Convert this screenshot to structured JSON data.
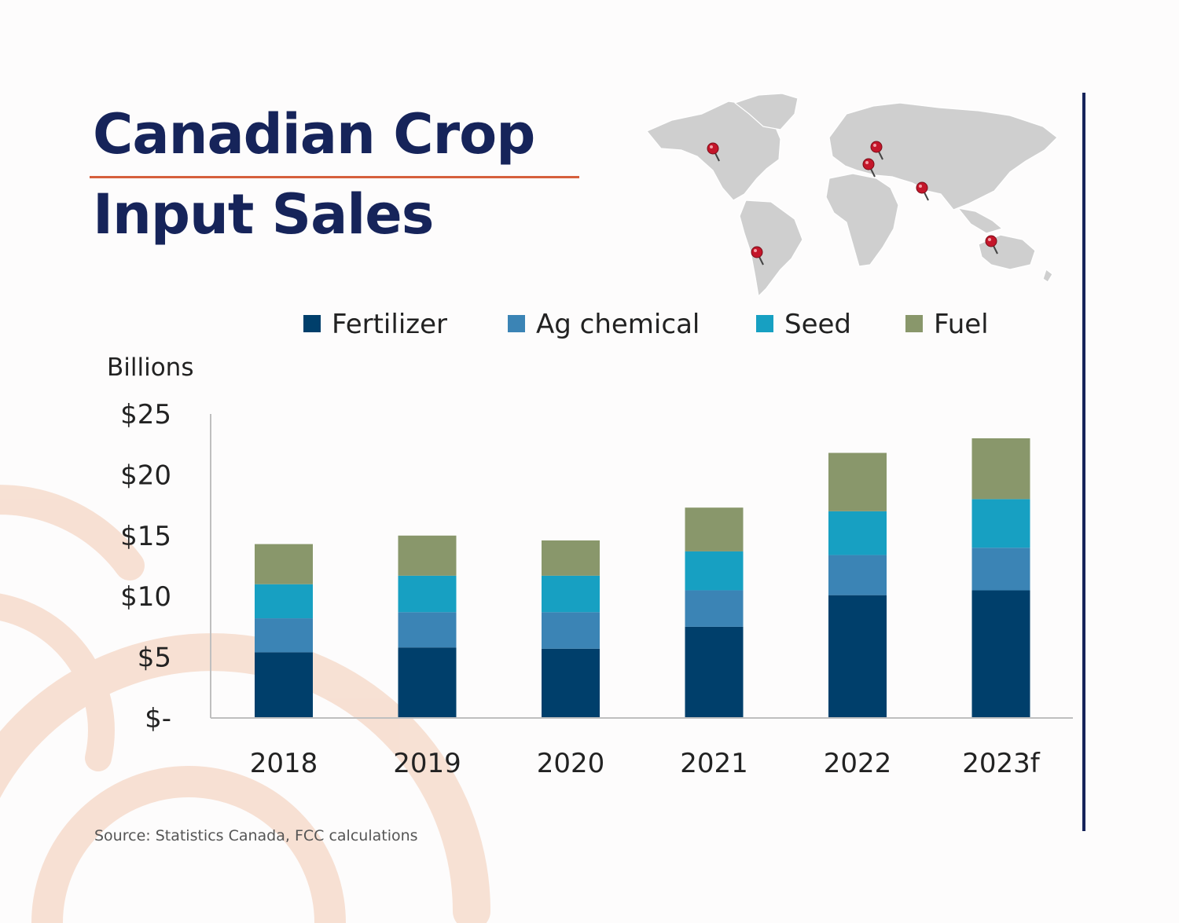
{
  "title": {
    "line1": "Canadian Crop",
    "line2": "Input Sales"
  },
  "source": "Source: Statistics Canada, FCC calculations",
  "colors": {
    "title": "#16245a",
    "accent": "#d65f3c",
    "Fertilizer": "#003f6b",
    "Ag chemical": "#3b84b5",
    "Seed": "#17a0c2",
    "Fuel": "#89976b"
  },
  "map_icon": "pushpin-icon",
  "chart_data": {
    "type": "bar",
    "stacked": true,
    "categories": [
      "2018",
      "2019",
      "2020",
      "2021",
      "2022",
      "2023f"
    ],
    "series": [
      {
        "name": "Fertilizer",
        "values": [
          5.4,
          5.8,
          5.7,
          7.5,
          10.1,
          10.5
        ]
      },
      {
        "name": "Ag chemical",
        "values": [
          2.8,
          2.9,
          3.0,
          3.0,
          3.3,
          3.5
        ]
      },
      {
        "name": "Seed",
        "values": [
          2.8,
          3.0,
          3.0,
          3.2,
          3.6,
          4.0
        ]
      },
      {
        "name": "Fuel",
        "values": [
          3.3,
          3.3,
          2.9,
          3.6,
          4.8,
          5.0
        ]
      }
    ],
    "ylabel": "Billions",
    "yticks": [
      "$-",
      "$5",
      "$10",
      "$15",
      "$20",
      "$25"
    ],
    "ylim": [
      0,
      25
    ],
    "legend": "top",
    "grid": false
  }
}
